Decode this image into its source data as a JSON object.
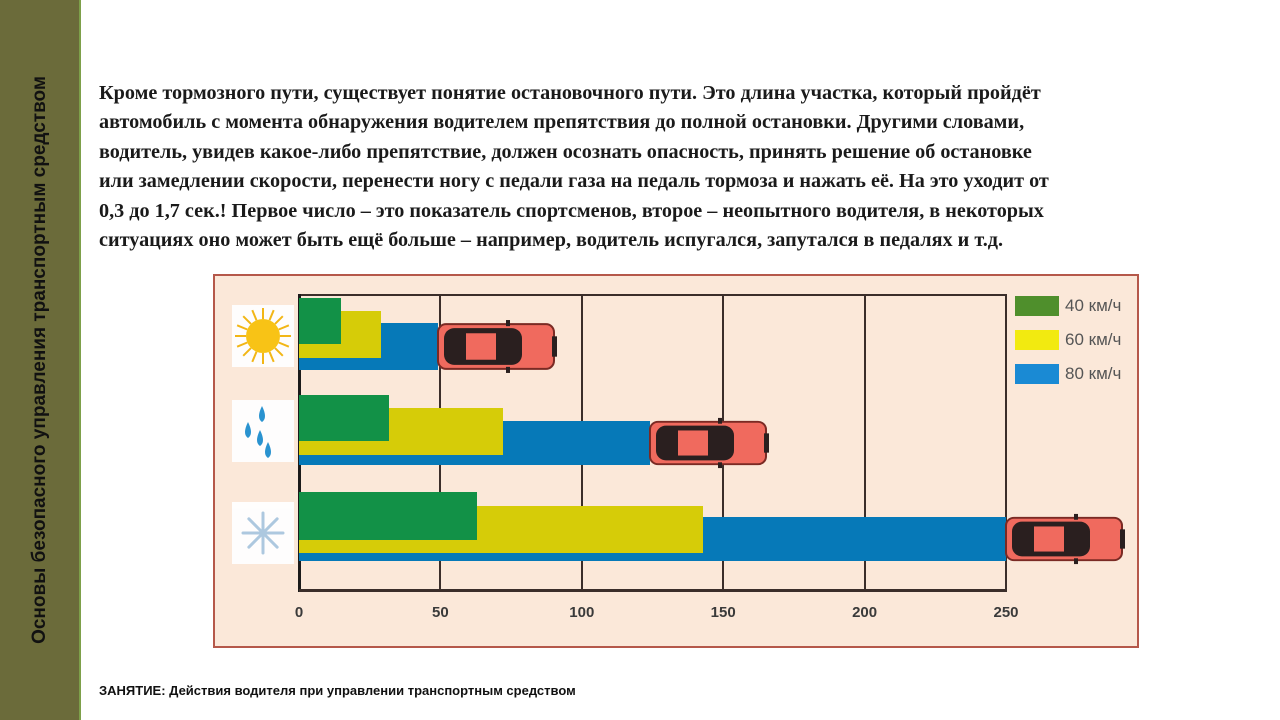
{
  "sidebar": {
    "title": "Основы безопасного управления транспортным средством"
  },
  "paragraph": {
    "lines": [
      "Кроме тормозного пути, существует понятие остановочного пути. Это длина участка, который пройдёт",
      "автомобиль с момента обнаружения водителем препятствия до полной остановки. Другими словами,",
      "водитель, увидев какое-либо препятствие, должен осознать опасность, принять решение об остановке",
      "или замедлении скорости, перенести ногу с педали газа на педаль тормоза и нажать её. На это уходит от",
      "0,3 до 1,7 сек.! Первое число – это показатель спортсменов, второе – неопытного водителя, в некоторых",
      "ситуациях оно может быть ещё больше – например, водитель испугался, запутался в педалях и т.д."
    ]
  },
  "footer": {
    "text": "ЗАНЯТИЕ: Действия водителя при управлении транспортным средством"
  },
  "colors": {
    "sidebar_bg": "#6b6b3a",
    "chart_bg": "#fbe8d9",
    "chart_border": "#b5584a",
    "series_40": "#129147",
    "series_60": "#d6cc08",
    "series_80": "#0679b8",
    "car_body": "#f06a5e",
    "car_dark": "#2a1f1f"
  },
  "chart_data": {
    "type": "bar",
    "orientation": "horizontal",
    "title": "",
    "xlabel": "",
    "ylabel": "",
    "categories": [
      "Сухая дорога (солнце)",
      "Мокрая дорога (дождь)",
      "Скользкая дорога (снег)"
    ],
    "category_icons": [
      "sun-icon",
      "raindrops-icon",
      "snowflake-icon"
    ],
    "series": [
      {
        "name": "40 км/ч",
        "color": "#129147",
        "values": [
          15,
          32,
          63
        ]
      },
      {
        "name": "60 км/ч",
        "color": "#d6cc08",
        "values": [
          29,
          72,
          143
        ]
      },
      {
        "name": "80 км/ч",
        "color": "#0679b8",
        "values": [
          49,
          124,
          250
        ]
      }
    ],
    "xticks": [
      0,
      50,
      100,
      150,
      200,
      250
    ],
    "xlim": [
      0,
      250
    ],
    "grid": true,
    "legend_position": "top-right",
    "legend": [
      "40 км/ч",
      "60 км/ч",
      "80 км/ч"
    ],
    "annotations": [
      "car icon at end of 80 км/ч bar in each row"
    ]
  }
}
